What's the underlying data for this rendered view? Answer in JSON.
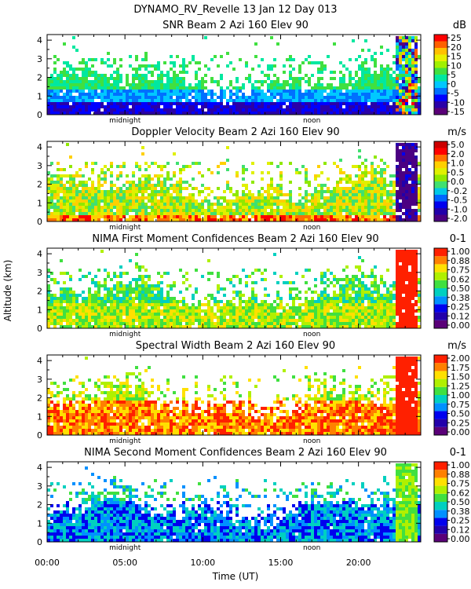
{
  "colors": {
    "dbz": [
      "#5a0078",
      "#2a00a8",
      "#0000ff",
      "#0070ff",
      "#00c8ff",
      "#00e8a0",
      "#40e040",
      "#a0f000",
      "#e8f000",
      "#ffc000",
      "#ff6000",
      "#ff0000"
    ],
    "vel": [
      "#4b0082",
      "#2200aa",
      "#0000ee",
      "#0066ff",
      "#00c8e6",
      "#40e070",
      "#90e800",
      "#e0f000",
      "#ffd000",
      "#ff7000",
      "#ff0000",
      "#cc0000"
    ],
    "conf": [
      "#5a0078",
      "#2200aa",
      "#0000ee",
      "#0090ff",
      "#00d0c0",
      "#40e040",
      "#b0f000",
      "#ffe000",
      "#ff8000",
      "#ff2000"
    ]
  },
  "chart_data": {
    "type": "heatmap",
    "main_title": "DYNAMO_RV_Revelle  13 Jan 12 Day 013",
    "xlabel": "Time (UT)",
    "ylabel": "Altitude (km)",
    "xlim": [
      0,
      24
    ],
    "x_ticks": [
      "00:00",
      "05:00",
      "10:00",
      "15:00",
      "20:00"
    ],
    "x_tick_values": [
      0,
      5,
      10,
      15,
      20
    ],
    "annotations": [
      {
        "text": "midnight",
        "x": 5
      },
      {
        "text": "noon",
        "x": 17
      }
    ],
    "panels": [
      {
        "title": "SNR Beam 2 Azi 160 Elev 90",
        "unit": "dB",
        "ylim": [
          0,
          4.3
        ],
        "y_ticks": [
          "0",
          "1",
          "2",
          "3",
          "4"
        ],
        "colorbar_ticks": [
          "25",
          "20",
          "15",
          "10",
          "5",
          "0",
          "-5",
          "-10",
          "-15"
        ],
        "colormap": "dbz"
      },
      {
        "title": "Doppler Velocity Beam 2 Azi 160 Elev 90",
        "unit": "m/s",
        "ylim": [
          0,
          4.3
        ],
        "y_ticks": [
          "0",
          "1",
          "2",
          "3",
          "4"
        ],
        "colorbar_ticks": [
          "5.0",
          "2.0",
          "1.0",
          "0.5",
          "0.0",
          "-0.2",
          "-0.5",
          "-1.0",
          "-2.0"
        ],
        "colormap": "vel"
      },
      {
        "title": "NIMA First Moment Confidences Beam 2 Azi 160 Elev 90",
        "unit": "0-1",
        "ylim": [
          0,
          4.3
        ],
        "y_ticks": [
          "0",
          "1",
          "2",
          "3",
          "4"
        ],
        "colorbar_ticks": [
          "1.00",
          "0.88",
          "0.75",
          "0.62",
          "0.50",
          "0.38",
          "0.25",
          "0.12",
          "0.00"
        ],
        "colormap": "conf"
      },
      {
        "title": "Spectral Width Beam 2 Azi 160 Elev 90",
        "unit": "m/s",
        "ylim": [
          0,
          4.3
        ],
        "y_ticks": [
          "0",
          "1",
          "2",
          "3",
          "4"
        ],
        "colorbar_ticks": [
          "2.00",
          "1.75",
          "1.50",
          "1.25",
          "1.00",
          "0.75",
          "0.50",
          "0.25",
          "0.00"
        ],
        "colormap": "conf"
      },
      {
        "title": "NIMA Second Moment Confidences Beam 2 Azi 160 Elev 90",
        "unit": "0-1",
        "ylim": [
          0,
          4.3
        ],
        "y_ticks": [
          "0",
          "1",
          "2",
          "3",
          "4"
        ],
        "colorbar_ticks": [
          "1.00",
          "0.88",
          "0.75",
          "0.62",
          "0.50",
          "0.38",
          "0.25",
          "0.12",
          "0.00"
        ],
        "colormap": "conf"
      }
    ]
  }
}
